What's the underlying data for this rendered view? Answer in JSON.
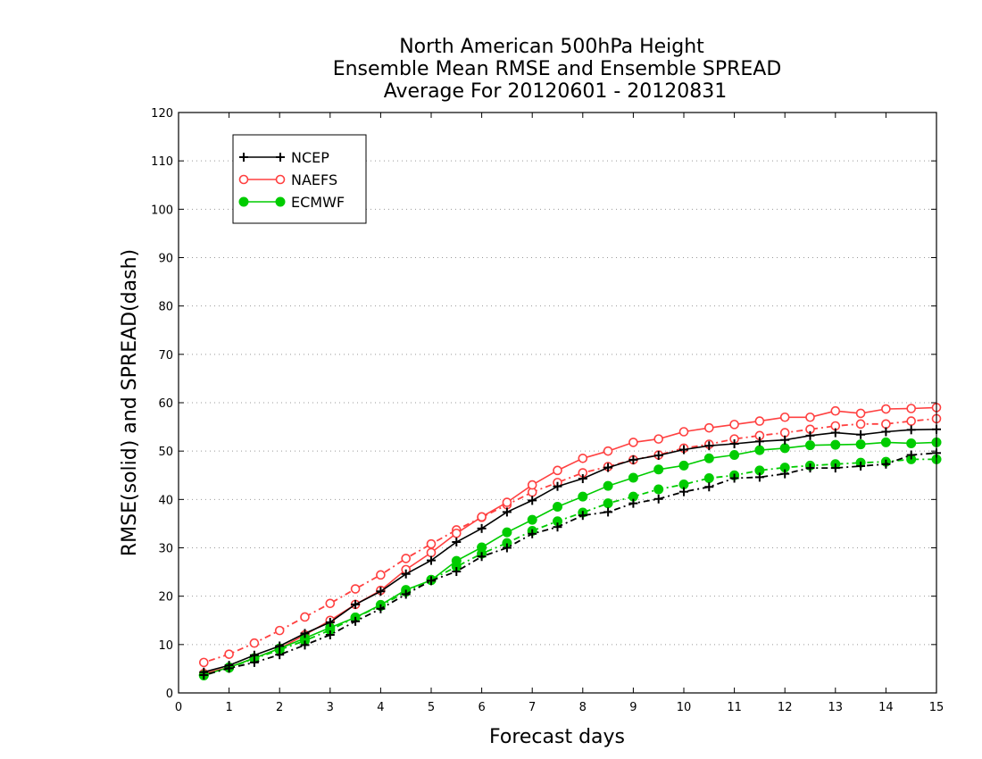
{
  "chart_data": {
    "type": "line",
    "title": [
      "North American 500hPa Height",
      "Ensemble Mean RMSE and Ensemble SPREAD",
      "Average For 20120601 - 20120831"
    ],
    "xlabel": "Forecast days",
    "ylabel": "RMSE(solid) and SPREAD(dash)",
    "xlim": [
      0,
      15
    ],
    "ylim": [
      0,
      120
    ],
    "x_ticks": [
      0,
      1,
      2,
      3,
      4,
      5,
      6,
      7,
      8,
      9,
      10,
      11,
      12,
      13,
      14,
      15
    ],
    "y_ticks": [
      0,
      10,
      20,
      30,
      40,
      50,
      60,
      70,
      80,
      90,
      100,
      110,
      120
    ],
    "grid": "horizontal-dotted",
    "legend_position": "top-left",
    "x": [
      0.5,
      1,
      1.5,
      2,
      2.5,
      3,
      3.5,
      4,
      4.5,
      5,
      5.5,
      6,
      6.5,
      7,
      7.5,
      8,
      8.5,
      9,
      9.5,
      10,
      10.5,
      11,
      11.5,
      12,
      12.5,
      13,
      13.5,
      14,
      14.5,
      15
    ],
    "series": [
      {
        "name": "NCEP",
        "color": "#000000",
        "marker": "plus",
        "rmse": [
          4.3,
          5.7,
          7.8,
          9.7,
          12.3,
          14.6,
          18.3,
          21.0,
          24.6,
          27.4,
          31.2,
          34.0,
          37.4,
          39.8,
          42.7,
          44.3,
          46.6,
          48.2,
          49.1,
          50.3,
          51.1,
          51.5,
          52.0,
          52.3,
          53.2,
          53.8,
          53.4,
          54.0,
          54.4,
          54.5
        ],
        "spread": [
          3.7,
          5.1,
          6.3,
          7.9,
          9.9,
          12.0,
          14.8,
          17.4,
          20.4,
          23.2,
          25.1,
          28.2,
          30.0,
          32.9,
          34.3,
          36.7,
          37.4,
          39.2,
          40.1,
          41.6,
          42.6,
          44.4,
          44.6,
          45.3,
          46.5,
          46.5,
          46.9,
          47.3,
          49.2,
          49.6
        ]
      },
      {
        "name": "NAEFS",
        "color": "#ff4040",
        "marker": "circle-open",
        "rmse": [
          4.0,
          5.3,
          7.2,
          9.2,
          12.0,
          15.0,
          18.3,
          21.2,
          25.5,
          29.0,
          33.0,
          36.4,
          39.4,
          43.0,
          46.0,
          48.5,
          50.0,
          51.8,
          52.5,
          54.0,
          54.8,
          55.5,
          56.2,
          57.0,
          57.0,
          58.3,
          57.8,
          58.7,
          58.8,
          59.0
        ],
        "spread": [
          6.3,
          8.0,
          10.3,
          12.9,
          15.7,
          18.5,
          21.5,
          24.4,
          27.8,
          30.8,
          33.7,
          36.3,
          38.9,
          41.5,
          43.5,
          45.5,
          46.8,
          48.2,
          49.2,
          50.6,
          51.4,
          52.5,
          53.2,
          53.8,
          54.5,
          55.2,
          55.6,
          55.6,
          56.2,
          56.7
        ]
      },
      {
        "name": "ECMWF",
        "color": "#00cc00",
        "marker": "circle-filled",
        "rmse": [
          3.7,
          5.3,
          7.2,
          9.2,
          11.3,
          13.5,
          15.6,
          18.2,
          21.3,
          23.3,
          27.3,
          30.1,
          33.2,
          35.8,
          38.5,
          40.6,
          42.8,
          44.5,
          46.2,
          47.0,
          48.5,
          49.2,
          50.2,
          50.6,
          51.2,
          51.3,
          51.4,
          51.8,
          51.6,
          51.8
        ],
        "spread": [
          3.6,
          5.2,
          7.1,
          8.9,
          10.8,
          13.0,
          15.6,
          18.0,
          20.9,
          23.4,
          26.1,
          28.8,
          31.0,
          33.5,
          35.5,
          37.3,
          39.2,
          40.6,
          42.1,
          43.1,
          44.4,
          45.0,
          46.0,
          46.6,
          47.0,
          47.3,
          47.6,
          47.8,
          48.3,
          48.3
        ]
      }
    ]
  }
}
